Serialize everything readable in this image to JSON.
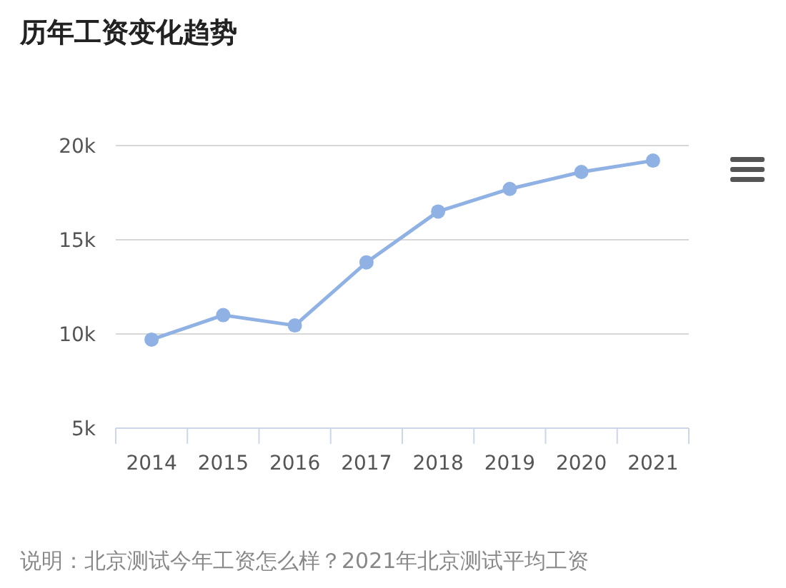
{
  "chart_data": {
    "type": "line",
    "title": "历年工资变化趋势",
    "categories": [
      "2014",
      "2015",
      "2016",
      "2017",
      "2018",
      "2019",
      "2020",
      "2021"
    ],
    "series": [
      {
        "color": "#8fb1e3",
        "values": [
          9700,
          11000,
          10450,
          13800,
          16500,
          17700,
          18600,
          19200
        ]
      }
    ],
    "ylim": [
      5000,
      20000
    ],
    "yticks": [
      {
        "value": 5000,
        "label": "5k"
      },
      {
        "value": 10000,
        "label": "10k"
      },
      {
        "value": 15000,
        "label": "15k"
      },
      {
        "value": 20000,
        "label": "20k"
      }
    ],
    "grid": "y",
    "marker": "circle",
    "line_style": "solid",
    "annotations": [
      "说明：北京测试今年工资怎么样？2021年北京测试平均工资"
    ]
  }
}
